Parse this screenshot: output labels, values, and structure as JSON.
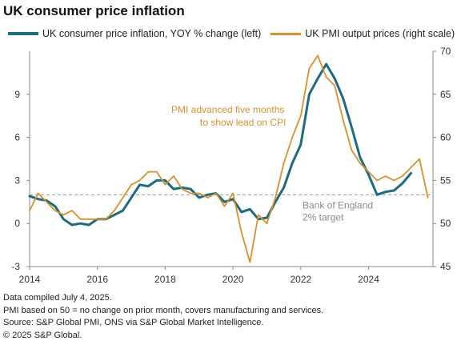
{
  "chart_data": {
    "type": "line",
    "title": "UK consumer price inflation",
    "xlim": [
      2014.0,
      2025.9
    ],
    "x_ticks": [
      "2014",
      "2016",
      "2018",
      "2020",
      "2022",
      "2024"
    ],
    "y_left": {
      "lim": [
        -3,
        12
      ],
      "ticks": [
        "-3",
        "0",
        "3",
        "6",
        "9"
      ]
    },
    "y_right": {
      "lim": [
        45,
        70
      ],
      "ticks": [
        "45",
        "50",
        "55",
        "60",
        "65",
        "70"
      ]
    },
    "reference_line": {
      "axis": "left",
      "value": 2,
      "style": "dashed",
      "label": [
        "Bank of England",
        "2% target"
      ]
    },
    "annotation": {
      "lines": [
        "PMI advanced five months",
        "to show lead on CPI"
      ],
      "color": "#d9902a"
    },
    "series": [
      {
        "name": "UK consumer price inflation, YOY % change (left)",
        "axis": "left",
        "color": "#1b6b82",
        "points": [
          [
            2014.0,
            1.9
          ],
          [
            2014.25,
            1.7
          ],
          [
            2014.5,
            1.6
          ],
          [
            2014.75,
            1.2
          ],
          [
            2015.0,
            0.3
          ],
          [
            2015.25,
            -0.1
          ],
          [
            2015.5,
            0.0
          ],
          [
            2015.75,
            -0.1
          ],
          [
            2016.0,
            0.3
          ],
          [
            2016.25,
            0.3
          ],
          [
            2016.5,
            0.6
          ],
          [
            2016.75,
            0.9
          ],
          [
            2017.0,
            1.8
          ],
          [
            2017.25,
            2.7
          ],
          [
            2017.5,
            2.6
          ],
          [
            2017.75,
            3.0
          ],
          [
            2018.0,
            3.0
          ],
          [
            2018.25,
            2.4
          ],
          [
            2018.5,
            2.5
          ],
          [
            2018.75,
            2.4
          ],
          [
            2019.0,
            1.8
          ],
          [
            2019.25,
            2.0
          ],
          [
            2019.5,
            2.1
          ],
          [
            2019.75,
            1.5
          ],
          [
            2020.0,
            1.7
          ],
          [
            2020.25,
            0.8
          ],
          [
            2020.5,
            1.0
          ],
          [
            2020.75,
            0.3
          ],
          [
            2021.0,
            0.4
          ],
          [
            2021.25,
            1.5
          ],
          [
            2021.5,
            2.5
          ],
          [
            2021.75,
            4.2
          ],
          [
            2022.0,
            5.5
          ],
          [
            2022.25,
            9.0
          ],
          [
            2022.5,
            10.1
          ],
          [
            2022.75,
            11.1
          ],
          [
            2023.0,
            10.1
          ],
          [
            2023.25,
            8.7
          ],
          [
            2023.5,
            6.7
          ],
          [
            2023.75,
            4.6
          ],
          [
            2024.0,
            3.4
          ],
          [
            2024.25,
            2.0
          ],
          [
            2024.5,
            2.2
          ],
          [
            2024.75,
            2.3
          ],
          [
            2025.0,
            2.8
          ],
          [
            2025.25,
            3.5
          ]
        ]
      },
      {
        "name": "UK PMI output prices (right scale)",
        "axis": "right",
        "color": "#d9902a",
        "points": [
          [
            2014.0,
            51.5
          ],
          [
            2014.25,
            53.5
          ],
          [
            2014.5,
            52.5
          ],
          [
            2014.75,
            51.5
          ],
          [
            2015.0,
            51.0
          ],
          [
            2015.25,
            51.5
          ],
          [
            2015.5,
            50.5
          ],
          [
            2015.75,
            50.5
          ],
          [
            2016.0,
            50.5
          ],
          [
            2016.25,
            50.5
          ],
          [
            2016.5,
            51.5
          ],
          [
            2016.75,
            53.0
          ],
          [
            2017.0,
            54.5
          ],
          [
            2017.25,
            55.0
          ],
          [
            2017.5,
            56.0
          ],
          [
            2017.75,
            56.0
          ],
          [
            2018.0,
            54.5
          ],
          [
            2018.25,
            55.5
          ],
          [
            2018.5,
            54.0
          ],
          [
            2018.75,
            53.5
          ],
          [
            2019.0,
            53.5
          ],
          [
            2019.25,
            53.0
          ],
          [
            2019.5,
            53.5
          ],
          [
            2019.75,
            52.0
          ],
          [
            2020.0,
            53.5
          ],
          [
            2020.25,
            49.0
          ],
          [
            2020.5,
            45.5
          ],
          [
            2020.75,
            51.0
          ],
          [
            2021.0,
            50.0
          ],
          [
            2021.25,
            53.0
          ],
          [
            2021.5,
            57.0
          ],
          [
            2021.75,
            60.0
          ],
          [
            2022.0,
            62.5
          ],
          [
            2022.25,
            68.0
          ],
          [
            2022.5,
            69.5
          ],
          [
            2022.75,
            67.0
          ],
          [
            2023.0,
            66.0
          ],
          [
            2023.25,
            62.0
          ],
          [
            2023.5,
            58.5
          ],
          [
            2023.75,
            57.0
          ],
          [
            2024.0,
            56.0
          ],
          [
            2024.25,
            55.0
          ],
          [
            2024.5,
            55.5
          ],
          [
            2024.75,
            55.0
          ],
          [
            2025.0,
            55.5
          ],
          [
            2025.25,
            56.5
          ],
          [
            2025.5,
            57.5
          ],
          [
            2025.75,
            53.0
          ]
        ]
      }
    ]
  },
  "footer": {
    "lines": [
      "Data compiled July 4, 2025.",
      "PMI based on 50 = no change on prior month, covers manufacturing and services.",
      "Source: S&P Global PMI, ONS via S&P Global Market Intelligence.",
      "© 2025 S&P Global."
    ]
  }
}
